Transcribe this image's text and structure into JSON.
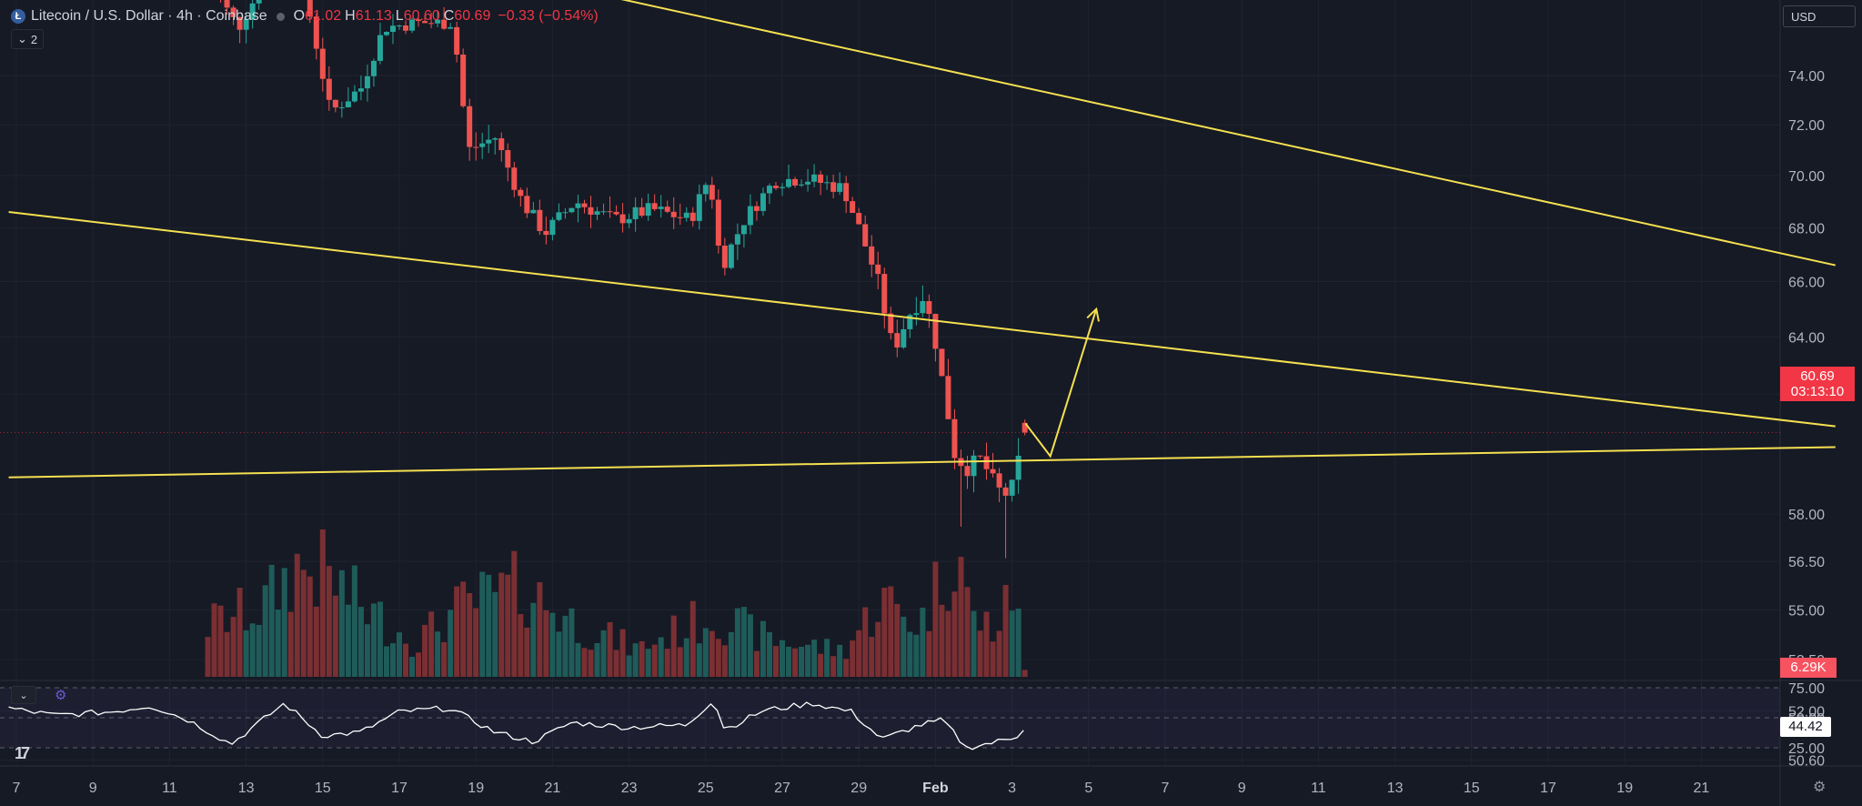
{
  "header": {
    "symbol": "Litecoin / U.S. Dollar · 4h · Coinbase",
    "open_label": "O",
    "open": "61.02",
    "high_label": "H",
    "high": "61.13",
    "low_label": "L",
    "low": "60.60",
    "close_label": "C",
    "close": "60.69",
    "change": "−0.33 (−0.54%)",
    "indicator_count": "2",
    "currency": "USD"
  },
  "price_axis": {
    "ticks": [
      "74.00",
      "72.00",
      "70.00",
      "68.00",
      "66.00",
      "64.00",
      "62.00",
      "58.00",
      "56.50",
      "55.00",
      "53.50",
      "52.00",
      "50.60"
    ],
    "current_price": "60.69",
    "countdown": "03:13:10",
    "volume_label": "6.29K"
  },
  "rsi": {
    "ticks": [
      "75.00",
      "50.00",
      "25.00"
    ],
    "value": "44.42"
  },
  "time_axis": {
    "labels": [
      "7",
      "9",
      "11",
      "13",
      "15",
      "17",
      "19",
      "21",
      "23",
      "25",
      "27",
      "29",
      "Feb",
      "3",
      "5",
      "7",
      "9",
      "11",
      "13",
      "15",
      "17",
      "19",
      "21"
    ]
  },
  "colors": {
    "background": "#161a25",
    "up": "#26a69a",
    "down": "#ef5350",
    "trendline": "#f5e050",
    "rsi_line": "#ffffff",
    "price_label": "#f23645"
  },
  "chart_data": {
    "type": "candlestick",
    "title": "Litecoin / U.S. Dollar · 4h · Coinbase",
    "interval": "4h",
    "timeframe_note": "x = day index of month (Jan 7 … Feb 21); candles every 4h",
    "x_ticks": [
      "7",
      "9",
      "11",
      "13",
      "15",
      "17",
      "19",
      "21",
      "23",
      "25",
      "27",
      "29",
      "Feb",
      "3",
      "5",
      "7",
      "9",
      "11",
      "13",
      "15",
      "17",
      "19",
      "21"
    ],
    "y_scale": "log",
    "ohlc_waypoints": [
      {
        "day": 12.0,
        "close": 78.0
      },
      {
        "day": 12.8,
        "close": 76.0
      },
      {
        "day": 14.0,
        "close": 79.5
      },
      {
        "day": 14.6,
        "close": 77.0
      },
      {
        "day": 15.2,
        "close": 72.5
      },
      {
        "day": 16.0,
        "close": 73.5
      },
      {
        "day": 16.6,
        "close": 76.0
      },
      {
        "day": 17.5,
        "close": 76.2
      },
      {
        "day": 18.4,
        "close": 76.2
      },
      {
        "day": 18.8,
        "close": 71.0
      },
      {
        "day": 19.5,
        "close": 71.5
      },
      {
        "day": 20.2,
        "close": 69.0
      },
      {
        "day": 20.8,
        "close": 67.8
      },
      {
        "day": 21.6,
        "close": 69.0
      },
      {
        "day": 22.6,
        "close": 68.3
      },
      {
        "day": 23.6,
        "close": 68.7
      },
      {
        "day": 24.6,
        "close": 68.3
      },
      {
        "day": 25.1,
        "close": 70.0
      },
      {
        "day": 25.4,
        "close": 66.5
      },
      {
        "day": 26.0,
        "close": 68.3
      },
      {
        "day": 26.8,
        "close": 69.8
      },
      {
        "day": 27.6,
        "close": 69.9
      },
      {
        "day": 28.6,
        "close": 69.5
      },
      {
        "day": 29.0,
        "close": 68.0
      },
      {
        "day": 29.5,
        "close": 66.0
      },
      {
        "day": 29.9,
        "close": 63.5
      },
      {
        "day": 30.3,
        "close": 64.8
      },
      {
        "day": 30.7,
        "close": 65.5
      },
      {
        "day": 31.0,
        "close": 63.8
      },
      {
        "day": 31.5,
        "close": 60.0
      },
      {
        "day": 31.8,
        "close": 59.5
      },
      {
        "day": 32.2,
        "close": 59.8
      },
      {
        "day": 32.6,
        "close": 58.8
      },
      {
        "day": 32.95,
        "close": 58.6
      },
      {
        "day": 33.15,
        "close": 59.6
      },
      {
        "day": 33.35,
        "close": 61.0
      }
    ],
    "last_candle": {
      "open": 61.02,
      "high": 61.13,
      "low": 60.6,
      "close": 60.69
    },
    "notable_lows": [
      {
        "day": 31.65,
        "low": 57.6
      },
      {
        "day": 32.9,
        "low": 56.6
      }
    ],
    "trendlines": [
      {
        "from": {
          "day": 12.5,
          "price": 81.0
        },
        "to": {
          "day": 54.5,
          "price": 66.6
        }
      },
      {
        "from": {
          "day": 6.8,
          "price": 68.6
        },
        "to": {
          "day": 54.5,
          "price": 60.9
        }
      },
      {
        "from": {
          "day": 6.8,
          "price": 59.2
        },
        "to": {
          "day": 54.5,
          "price": 60.2
        }
      }
    ],
    "projection": [
      {
        "day": 33.35,
        "price": 61.0
      },
      {
        "day": 34.0,
        "price": 59.9
      },
      {
        "day": 35.2,
        "price": 65.0
      }
    ],
    "volume_waypoints": [
      {
        "day": 6.8,
        "value": 1.0
      },
      {
        "day": 10.0,
        "value": 1.1
      },
      {
        "day": 11.5,
        "value": 2.5
      },
      {
        "day": 12.2,
        "value": 3.2
      },
      {
        "day": 13.4,
        "value": 4.0
      },
      {
        "day": 14.3,
        "value": 6.3
      },
      {
        "day": 15.0,
        "value": 6.0
      },
      {
        "day": 16.2,
        "value": 3.8
      },
      {
        "day": 17.4,
        "value": 2.0
      },
      {
        "day": 18.6,
        "value": 4.0
      },
      {
        "day": 20.2,
        "value": 5.2
      },
      {
        "day": 21.6,
        "value": 3.1
      },
      {
        "day": 23.2,
        "value": 1.6
      },
      {
        "day": 25.2,
        "value": 3.6
      },
      {
        "day": 26.6,
        "value": 2.2
      },
      {
        "day": 28.6,
        "value": 1.5
      },
      {
        "day": 29.6,
        "value": 4.5
      },
      {
        "day": 30.6,
        "value": 3.0
      },
      {
        "day": 31.6,
        "value": 8.0
      },
      {
        "day": 31.9,
        "value": 3.4
      },
      {
        "day": 32.6,
        "value": 2.8
      },
      {
        "day": 33.2,
        "value": 5.5
      },
      {
        "day": 33.4,
        "value": 0.4
      }
    ],
    "rsi_waypoints": [
      {
        "day": 6.8,
        "value": 58
      },
      {
        "day": 8.0,
        "value": 52
      },
      {
        "day": 9.5,
        "value": 55
      },
      {
        "day": 10.5,
        "value": 60
      },
      {
        "day": 11.5,
        "value": 48
      },
      {
        "day": 12.6,
        "value": 28
      },
      {
        "day": 14.0,
        "value": 62
      },
      {
        "day": 15.0,
        "value": 35
      },
      {
        "day": 16.0,
        "value": 38
      },
      {
        "day": 17.0,
        "value": 55
      },
      {
        "day": 18.3,
        "value": 58
      },
      {
        "day": 19.5,
        "value": 38
      },
      {
        "day": 20.5,
        "value": 30
      },
      {
        "day": 21.5,
        "value": 46
      },
      {
        "day": 23.0,
        "value": 42
      },
      {
        "day": 24.5,
        "value": 44
      },
      {
        "day": 25.2,
        "value": 65
      },
      {
        "day": 25.5,
        "value": 40
      },
      {
        "day": 26.5,
        "value": 56
      },
      {
        "day": 27.8,
        "value": 62
      },
      {
        "day": 28.8,
        "value": 55
      },
      {
        "day": 29.6,
        "value": 32
      },
      {
        "day": 30.6,
        "value": 44
      },
      {
        "day": 31.2,
        "value": 48
      },
      {
        "day": 31.8,
        "value": 25
      },
      {
        "day": 32.6,
        "value": 30
      },
      {
        "day": 33.1,
        "value": 34
      },
      {
        "day": 33.4,
        "value": 45
      }
    ]
  }
}
